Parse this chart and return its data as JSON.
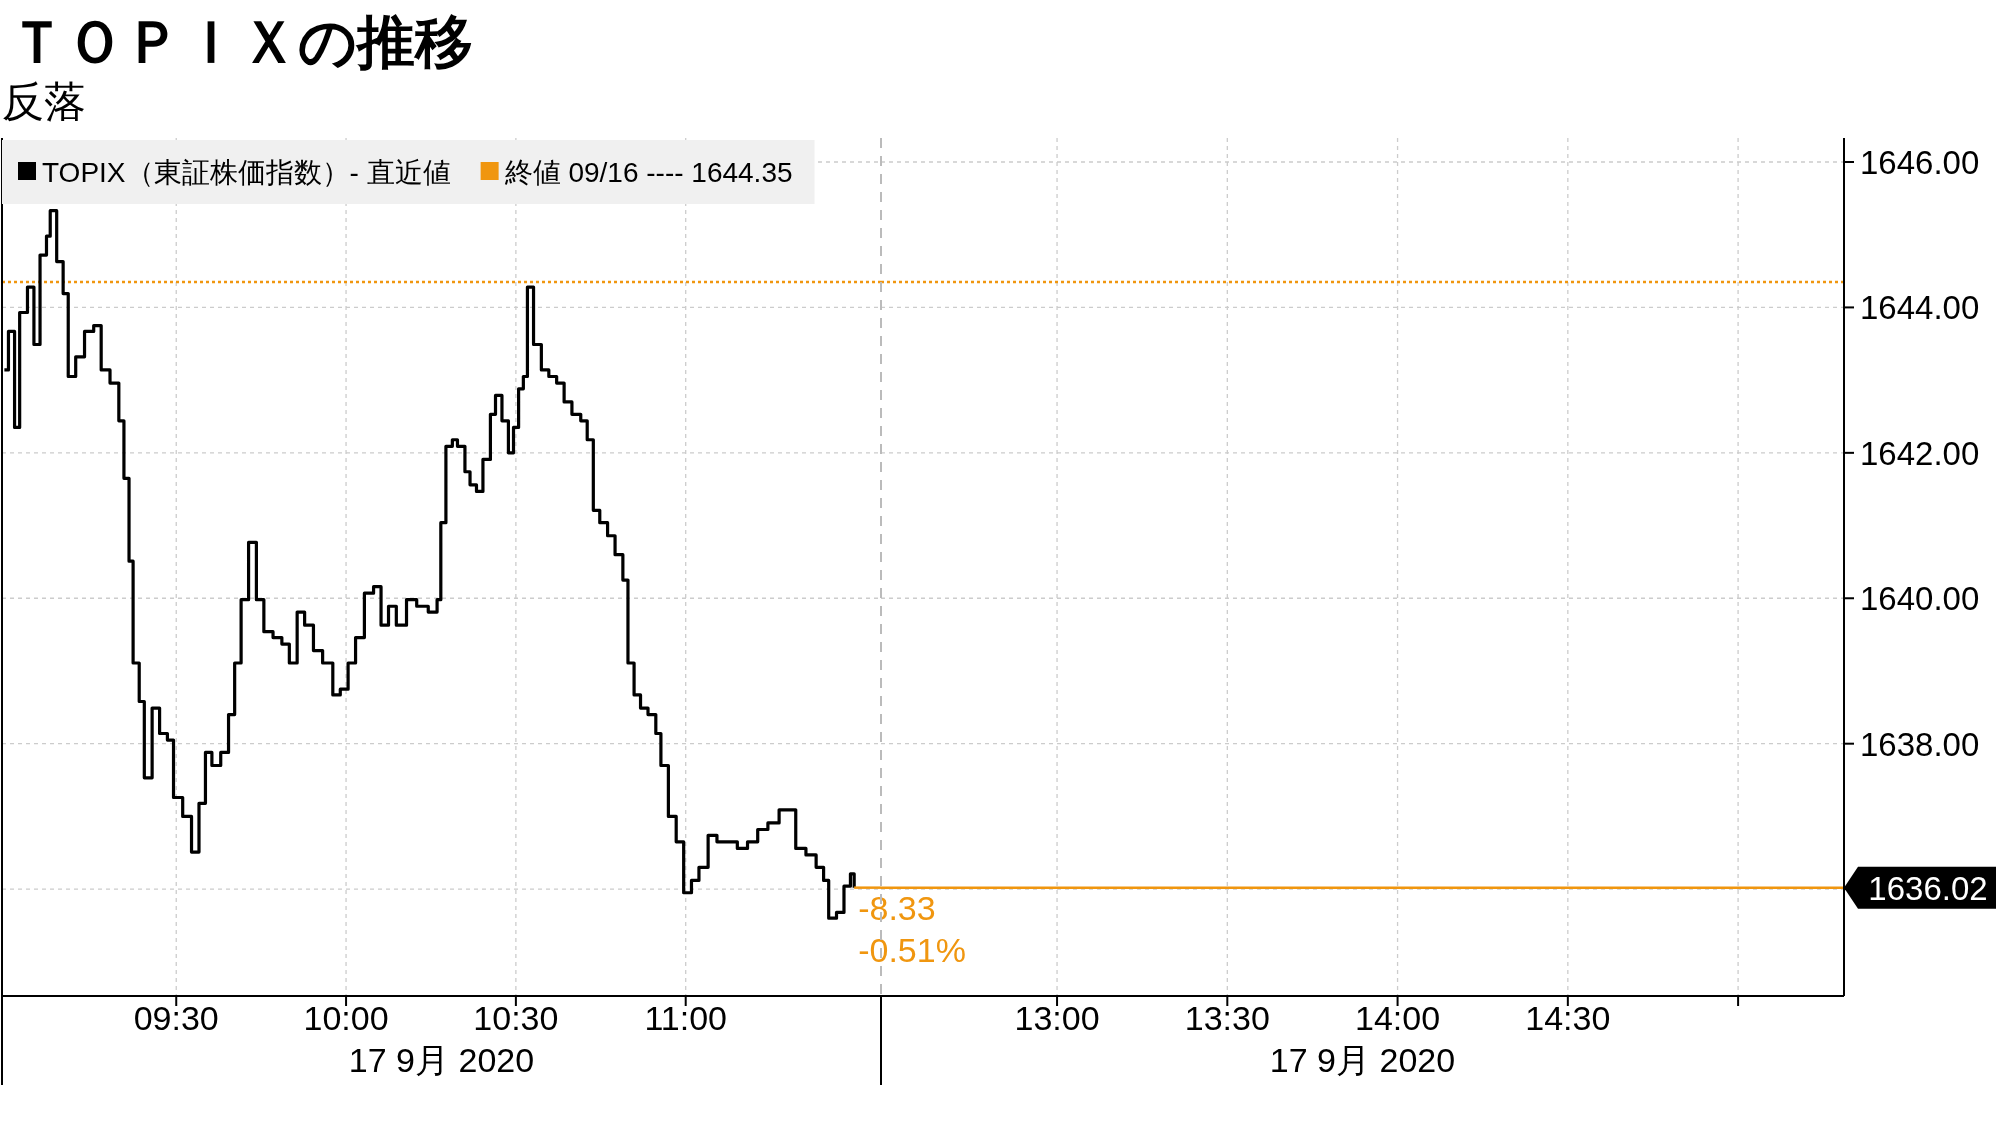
{
  "chart_data": [
    {
      "type": "step",
      "title": "ＴＯＰＩＸの推移",
      "subtitle": "反落",
      "xlabel": "17 9月 2020",
      "series": [
        {
          "name": "TOPIX（東証株価指数）- 直近値",
          "color": "#000000",
          "x": [
            8.994,
            9.006,
            9.024,
            9.039,
            9.062,
            9.081,
            9.099,
            9.118,
            9.129,
            9.148,
            9.167,
            9.182,
            9.204,
            9.23,
            9.257,
            9.279,
            9.305,
            9.331,
            9.346,
            9.361,
            9.373,
            9.391,
            9.406,
            9.429,
            9.451,
            9.474,
            9.492,
            9.519,
            9.545,
            9.567,
            9.586,
            9.605,
            9.631,
            9.654,
            9.672,
            9.691,
            9.713,
            9.736,
            9.758,
            9.785,
            9.811,
            9.833,
            9.856,
            9.878,
            9.904,
            9.931,
            9.961,
            9.983,
            10.006,
            10.028,
            10.054,
            10.081,
            10.103,
            10.125,
            10.148,
            10.178,
            10.208,
            10.242,
            10.268,
            10.279,
            10.294,
            10.313,
            10.328,
            10.35,
            10.365,
            10.384,
            10.403,
            10.425,
            10.44,
            10.459,
            10.478,
            10.493,
            10.508,
            10.522,
            10.534,
            10.552,
            10.575,
            10.597,
            10.62,
            10.642,
            10.665,
            10.691,
            10.71,
            10.728,
            10.747,
            10.77,
            10.792,
            10.815,
            10.83,
            10.848,
            10.867,
            10.889,
            10.912,
            10.927,
            10.949,
            10.972,
            10.994,
            11.017,
            11.039,
            11.066,
            11.092,
            11.122,
            11.152,
            11.182,
            11.212,
            11.242,
            11.275,
            11.301,
            11.324,
            11.354,
            11.384,
            11.406,
            11.421,
            11.444,
            11.466,
            11.485,
            11.496
          ],
          "values": [
            1643.14,
            1643.67,
            1642.35,
            1643.93,
            1644.28,
            1643.49,
            1644.72,
            1644.98,
            1645.33,
            1644.63,
            1644.19,
            1643.05,
            1643.32,
            1643.67,
            1643.75,
            1643.14,
            1642.96,
            1642.44,
            1641.65,
            1640.51,
            1639.11,
            1638.58,
            1637.53,
            1638.49,
            1638.14,
            1638.05,
            1637.26,
            1637.0,
            1636.51,
            1637.18,
            1637.88,
            1637.7,
            1637.88,
            1638.4,
            1639.11,
            1639.98,
            1640.77,
            1639.98,
            1639.54,
            1639.46,
            1639.37,
            1639.11,
            1639.81,
            1639.63,
            1639.28,
            1639.11,
            1638.67,
            1638.75,
            1639.11,
            1639.46,
            1640.07,
            1640.16,
            1639.63,
            1639.89,
            1639.63,
            1639.98,
            1639.89,
            1639.81,
            1639.98,
            1641.04,
            1642.09,
            1642.18,
            1642.09,
            1641.74,
            1641.56,
            1641.47,
            1641.91,
            1642.53,
            1642.79,
            1642.44,
            1642.0,
            1642.35,
            1642.88,
            1643.05,
            1644.28,
            1643.49,
            1643.14,
            1643.05,
            1642.96,
            1642.7,
            1642.53,
            1642.44,
            1642.18,
            1641.21,
            1641.04,
            1640.86,
            1640.6,
            1640.25,
            1639.11,
            1638.67,
            1638.49,
            1638.4,
            1638.14,
            1637.7,
            1637.0,
            1636.65,
            1635.95,
            1636.12,
            1636.3,
            1636.74,
            1636.65,
            1636.65,
            1636.56,
            1636.65,
            1636.82,
            1636.91,
            1637.09,
            1637.09,
            1636.56,
            1636.47,
            1636.3,
            1636.12,
            1635.6,
            1635.68,
            1636.04,
            1636.21,
            1636.02
          ]
        },
        {
          "type": "line",
          "color": "#f0960f",
          "x": [
            11.496,
            11.575
          ],
          "values": [
            1636.02,
            1636.02
          ]
        }
      ],
      "xlim": [
        8.987,
        11.575
      ],
      "xticks": [
        {
          "value": 9.5,
          "label": "09:30"
        },
        {
          "value": 10,
          "label": "10:00"
        },
        {
          "value": 10.5,
          "label": "10:30"
        },
        {
          "value": 11,
          "label": "11:00"
        }
      ],
      "ylim": [
        1634.53,
        1646.33
      ],
      "yticks": [
        1636,
        1638,
        1640,
        1642,
        1644,
        1646
      ],
      "tick_labels": "x",
      "grid": true,
      "legend": "top left",
      "ref_lines": [
        {
          "axis": "y",
          "value": 1644.35,
          "label": "終値 09/16 ---- 1644.35",
          "color": "#f0960f",
          "line_style": "dotted"
        }
      ],
      "annotations": [
        {
          "text": "-8.33",
          "x": 11.496,
          "y": 1636.02
        },
        {
          "text": "-0.51%",
          "x": 11.496,
          "y": 1636.02
        }
      ]
    },
    {
      "type": "step",
      "xlabel": "17 9月 2020",
      "xlim": [
        12.483,
        15.311
      ],
      "xticks": [
        {
          "value": 13,
          "label": "13:00"
        },
        {
          "value": 13.5,
          "label": "13:30"
        },
        {
          "value": 14,
          "label": "14:00"
        },
        {
          "value": 14.5,
          "label": "14:30"
        },
        {
          "value": 15,
          "label": null
        }
      ],
      "ylim": [
        1634.53,
        1646.33
      ],
      "yticks": [
        {
          "value": 1636,
          "label": null
        },
        {
          "value": 1638,
          "label": "1638.00"
        },
        {
          "value": 1640,
          "label": "1640.00"
        },
        {
          "value": 1642,
          "label": "1642.00"
        },
        {
          "value": 1644,
          "label": "1644.00"
        },
        {
          "value": 1646,
          "label": "1646.00"
        }
      ],
      "grid": true,
      "ref_lines": [
        {
          "axis": "y",
          "value": 1644.35,
          "color": "#f0960f",
          "line_style": "dotted"
        },
        {
          "axis": "y",
          "value": 1636.02,
          "label": "1636.02",
          "color": "#f0960f",
          "line_style": "solid"
        }
      ]
    }
  ]
}
